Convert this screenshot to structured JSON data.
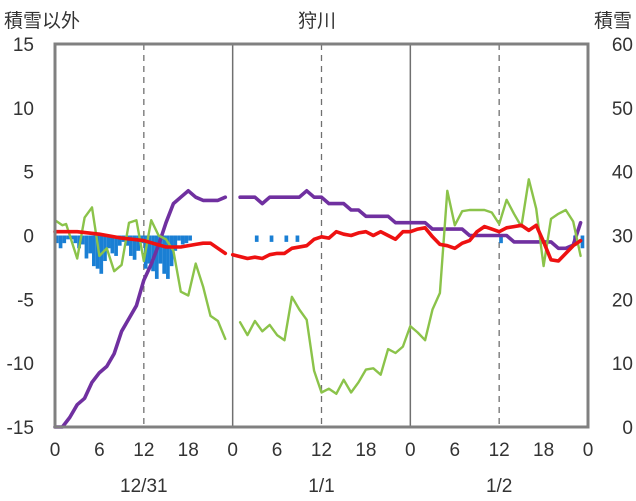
{
  "chart_data": {
    "type": "line",
    "title": "狩川",
    "y_left_label": "積雪以外",
    "y_right_label": "積雪",
    "y_left_range": [
      -15,
      15
    ],
    "y_left_ticks": [
      "15",
      "10",
      "5",
      "0",
      "-5",
      "-10",
      "-15"
    ],
    "y_right_range": [
      0,
      60
    ],
    "y_right_ticks": [
      "60",
      "50",
      "40",
      "30",
      "20",
      "10",
      "0"
    ],
    "x_range_hours": [
      0,
      72
    ],
    "x_tick_labels": [
      "0",
      "6",
      "12",
      "18",
      "0",
      "6",
      "12",
      "18",
      "0",
      "6",
      "12",
      "18",
      "0"
    ],
    "date_labels": [
      {
        "label": "12/31",
        "hour": 12
      },
      {
        "label": "1/1",
        "hour": 36
      },
      {
        "label": "1/2",
        "hour": 60
      }
    ],
    "grid": {
      "vertical_dashed_hours": [
        12,
        36,
        60
      ],
      "vertical_solid_hours": [
        24,
        48
      ],
      "horizontal": "none"
    },
    "colors": {
      "precipitation": "#1a7fd4",
      "temperature": "#ee1111",
      "wind": "#8bc34a",
      "snow_depth": "#7030a0",
      "frame": "#808080"
    },
    "series": [
      {
        "key": "precipitation",
        "type": "bar",
        "axis": "left",
        "points": [
          [
            0,
            -0.6
          ],
          [
            0.5,
            -1.0
          ],
          [
            1,
            -0.6
          ],
          [
            1.5,
            -0.3
          ],
          [
            2,
            -0.3
          ],
          [
            2.5,
            -0.6
          ],
          [
            3,
            -1.0
          ],
          [
            3.5,
            -0.7
          ],
          [
            4,
            -1.8
          ],
          [
            4.5,
            -1.4
          ],
          [
            5,
            -2.4
          ],
          [
            5.5,
            -2.6
          ],
          [
            6,
            -3.0
          ],
          [
            6.5,
            -2.0
          ],
          [
            7,
            -1.0
          ],
          [
            7.5,
            -1.4
          ],
          [
            8,
            -1.6
          ],
          [
            8.5,
            -0.8
          ],
          [
            9,
            -0.5
          ],
          [
            9.5,
            -0.8
          ],
          [
            10,
            -1.6
          ],
          [
            10.5,
            -1.9
          ],
          [
            11,
            -1.2
          ],
          [
            11.5,
            -0.6
          ],
          [
            12,
            -2.6
          ],
          [
            12.5,
            -2.2
          ],
          [
            13,
            -2.8
          ],
          [
            13.5,
            -3.4
          ],
          [
            14,
            -2.2
          ],
          [
            14.5,
            -3.0
          ],
          [
            15,
            -3.4
          ],
          [
            15.5,
            -2.4
          ],
          [
            16,
            -1.2
          ],
          [
            16.5,
            -0.4
          ],
          [
            17,
            -0.7
          ],
          [
            17.5,
            -0.6
          ],
          [
            18,
            -0.4
          ],
          [
            27,
            -0.5
          ],
          [
            29,
            -0.5
          ],
          [
            31,
            -0.5
          ],
          [
            32.5,
            -0.5
          ],
          [
            60,
            -0.6
          ],
          [
            70,
            -0.8
          ],
          [
            71,
            -1.0
          ]
        ]
      },
      {
        "key": "temperature",
        "type": "line",
        "axis": "left",
        "segments": [
          [
            [
              0,
              0.3
            ],
            [
              3,
              0.3
            ],
            [
              6,
              0.1
            ],
            [
              9,
              -0.2
            ],
            [
              12,
              -0.4
            ],
            [
              15,
              -0.9
            ],
            [
              17,
              -0.9
            ],
            [
              19,
              -0.7
            ],
            [
              20,
              -0.6
            ],
            [
              21,
              -0.6
            ],
            [
              22,
              -1.0
            ],
            [
              23,
              -1.4
            ]
          ],
          [
            [
              24,
              -1.5
            ],
            [
              26,
              -1.8
            ],
            [
              27,
              -1.7
            ],
            [
              28,
              -1.8
            ],
            [
              29,
              -1.5
            ],
            [
              30,
              -1.4
            ],
            [
              31,
              -1.4
            ],
            [
              32,
              -1.0
            ],
            [
              34,
              -0.8
            ],
            [
              35,
              -0.3
            ],
            [
              36,
              -0.1
            ],
            [
              37,
              -0.2
            ],
            [
              38,
              0.3
            ],
            [
              39,
              0.1
            ],
            [
              40,
              0.0
            ],
            [
              41,
              0.2
            ],
            [
              42,
              0.3
            ],
            [
              43,
              0.0
            ],
            [
              44,
              0.3
            ],
            [
              45,
              0.0
            ],
            [
              46,
              -0.3
            ],
            [
              47,
              0.3
            ],
            [
              48,
              0.3
            ],
            [
              49,
              0.5
            ],
            [
              50,
              0.6
            ],
            [
              51,
              -0.1
            ],
            [
              52,
              -0.7
            ],
            [
              53,
              -0.8
            ],
            [
              54,
              -1.0
            ],
            [
              55,
              -0.6
            ],
            [
              56,
              -0.4
            ],
            [
              57,
              0.3
            ],
            [
              58,
              0.7
            ],
            [
              59,
              0.5
            ],
            [
              60,
              0.3
            ],
            [
              61,
              0.6
            ],
            [
              62,
              0.7
            ],
            [
              63,
              0.8
            ],
            [
              64,
              0.4
            ],
            [
              65,
              0.8
            ],
            [
              66,
              -0.5
            ],
            [
              67,
              -1.9
            ],
            [
              68,
              -2.0
            ],
            [
              69,
              -1.4
            ],
            [
              70,
              -0.8
            ],
            [
              71,
              -0.4
            ]
          ]
        ]
      },
      {
        "key": "wind",
        "type": "line",
        "axis": "left",
        "segments": [
          [
            [
              0,
              1.2
            ],
            [
              1,
              0.8
            ],
            [
              1.5,
              0.9
            ],
            [
              3,
              -1.8
            ],
            [
              4,
              1.4
            ],
            [
              5,
              2.2
            ],
            [
              6,
              -1.6
            ],
            [
              7,
              -1.0
            ],
            [
              8,
              -2.8
            ],
            [
              9,
              -2.3
            ],
            [
              10,
              1.0
            ],
            [
              11,
              1.2
            ],
            [
              12,
              -2.0
            ],
            [
              13,
              1.2
            ],
            [
              14,
              0.0
            ],
            [
              15,
              -0.3
            ],
            [
              16,
              -1.2
            ],
            [
              17,
              -4.4
            ],
            [
              18,
              -4.7
            ],
            [
              19,
              -2.2
            ],
            [
              20,
              -4.0
            ],
            [
              21,
              -6.3
            ],
            [
              22,
              -6.7
            ],
            [
              23,
              -8.1
            ]
          ],
          [
            [
              25,
              -6.8
            ],
            [
              26,
              -7.8
            ],
            [
              27,
              -6.7
            ],
            [
              28,
              -7.5
            ],
            [
              29,
              -7.0
            ],
            [
              30,
              -7.8
            ],
            [
              31,
              -8.2
            ],
            [
              32,
              -4.8
            ],
            [
              33,
              -5.8
            ],
            [
              34,
              -6.6
            ],
            [
              35,
              -10.6
            ],
            [
              36,
              -12.3
            ],
            [
              37,
              -12.0
            ],
            [
              38,
              -12.4
            ],
            [
              39,
              -11.3
            ],
            [
              40,
              -12.3
            ],
            [
              41,
              -11.5
            ],
            [
              42,
              -10.5
            ],
            [
              43,
              -10.4
            ],
            [
              44,
              -10.9
            ],
            [
              45,
              -8.9
            ],
            [
              46,
              -9.2
            ],
            [
              47,
              -8.7
            ],
            [
              48,
              -7.1
            ],
            [
              49,
              -7.6
            ],
            [
              50,
              -8.2
            ],
            [
              51,
              -5.8
            ],
            [
              52,
              -4.5
            ],
            [
              53,
              3.5
            ],
            [
              54,
              0.8
            ],
            [
              55,
              1.9
            ],
            [
              56,
              2.0
            ],
            [
              57,
              2.0
            ],
            [
              58,
              2.0
            ],
            [
              59,
              1.8
            ],
            [
              60,
              0.9
            ],
            [
              61,
              2.8
            ],
            [
              62,
              1.7
            ],
            [
              63,
              0.7
            ],
            [
              64,
              4.4
            ],
            [
              65,
              2.1
            ],
            [
              66,
              -2.4
            ],
            [
              67,
              1.3
            ],
            [
              68,
              1.7
            ],
            [
              69,
              2.0
            ],
            [
              70,
              1.1
            ],
            [
              71,
              -1.6
            ]
          ]
        ]
      },
      {
        "key": "snow_depth",
        "type": "line",
        "axis": "right",
        "segments": [
          [
            [
              0,
              0
            ],
            [
              1,
              0
            ],
            [
              2,
              1.5
            ],
            [
              3,
              3.5
            ],
            [
              4,
              4.5
            ],
            [
              5,
              7
            ],
            [
              6,
              8.5
            ],
            [
              7,
              9.5
            ],
            [
              8,
              11.5
            ],
            [
              9,
              15
            ],
            [
              10,
              17
            ],
            [
              11,
              19
            ],
            [
              12,
              23
            ],
            [
              13,
              25.5
            ],
            [
              14,
              28.5
            ],
            [
              15,
              32
            ],
            [
              16,
              35
            ],
            [
              17,
              36
            ],
            [
              18,
              37
            ],
            [
              19,
              36
            ],
            [
              20,
              35.5
            ],
            [
              21,
              35.5
            ],
            [
              22,
              35.5
            ],
            [
              23,
              36
            ]
          ],
          [
            [
              25,
              36
            ],
            [
              26,
              36
            ],
            [
              27,
              36
            ],
            [
              28,
              35
            ],
            [
              29,
              36
            ],
            [
              30,
              36
            ],
            [
              31,
              36
            ],
            [
              32,
              36
            ],
            [
              33,
              36
            ],
            [
              34,
              37
            ],
            [
              35,
              36
            ],
            [
              36,
              36
            ],
            [
              37,
              35
            ],
            [
              38,
              35
            ],
            [
              39,
              35
            ],
            [
              40,
              34
            ],
            [
              41,
              34
            ],
            [
              42,
              33
            ],
            [
              43,
              33
            ],
            [
              44,
              33
            ],
            [
              45,
              33
            ],
            [
              46,
              32
            ],
            [
              47,
              32
            ],
            [
              48,
              32
            ],
            [
              49,
              32
            ],
            [
              50,
              32
            ],
            [
              51,
              31
            ],
            [
              52,
              31
            ],
            [
              53,
              31
            ],
            [
              54,
              31
            ],
            [
              55,
              31
            ],
            [
              56,
              30
            ],
            [
              57,
              30
            ],
            [
              58,
              30
            ],
            [
              59,
              30
            ],
            [
              60,
              30
            ],
            [
              61,
              30
            ],
            [
              62,
              29
            ],
            [
              63,
              29
            ],
            [
              64,
              29
            ],
            [
              65,
              29
            ],
            [
              66,
              29
            ],
            [
              67,
              29
            ],
            [
              68,
              28
            ],
            [
              69,
              28
            ],
            [
              70,
              28.5
            ],
            [
              71,
              32
            ]
          ]
        ]
      }
    ]
  }
}
